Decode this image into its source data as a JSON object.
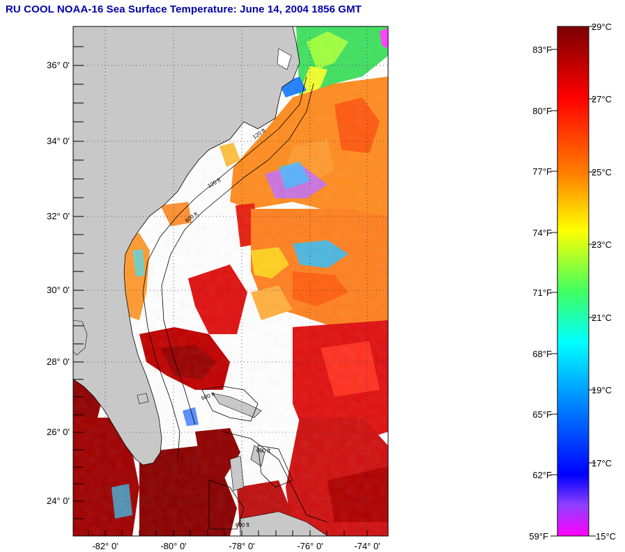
{
  "title": "RU COOL  NOAA-16  Sea Surface Temperature:  June 14, 2004 1856 GMT",
  "map": {
    "lat_labels": [
      "36° 0'",
      "34° 0'",
      "32° 0'",
      "30° 0'",
      "28° 0'",
      "26° 0'",
      "24° 0'"
    ],
    "lon_labels": [
      "-82° 0'",
      "-80° 0'",
      "-78° 0'",
      "-76° 0'",
      "-74° 0'"
    ],
    "contour_labels": [
      "120 ft",
      "120 ft",
      "600 ft",
      "600 ft",
      "600 ft",
      "600 ft"
    ],
    "land_color": "#c8c8c8",
    "grid": "dotted"
  },
  "colorbar": {
    "celsius_labels": [
      "29°C",
      "27°C",
      "25°C",
      "23°C",
      "21°C",
      "19°C",
      "17°C",
      "15°C"
    ],
    "fahrenheit_labels": [
      "83°F",
      "80°F",
      "77°F",
      "74°F",
      "71°F",
      "68°F",
      "65°F",
      "62°F",
      "59°F"
    ],
    "celsius_range": [
      15,
      29
    ],
    "fahrenheit_range": [
      59,
      84.2
    ],
    "colors": [
      "#800000",
      "#ff0000",
      "#ff8000",
      "#ffff00",
      "#00ff80",
      "#00ffff",
      "#0080ff",
      "#0000ff",
      "#8000ff",
      "#ff00ff"
    ]
  }
}
